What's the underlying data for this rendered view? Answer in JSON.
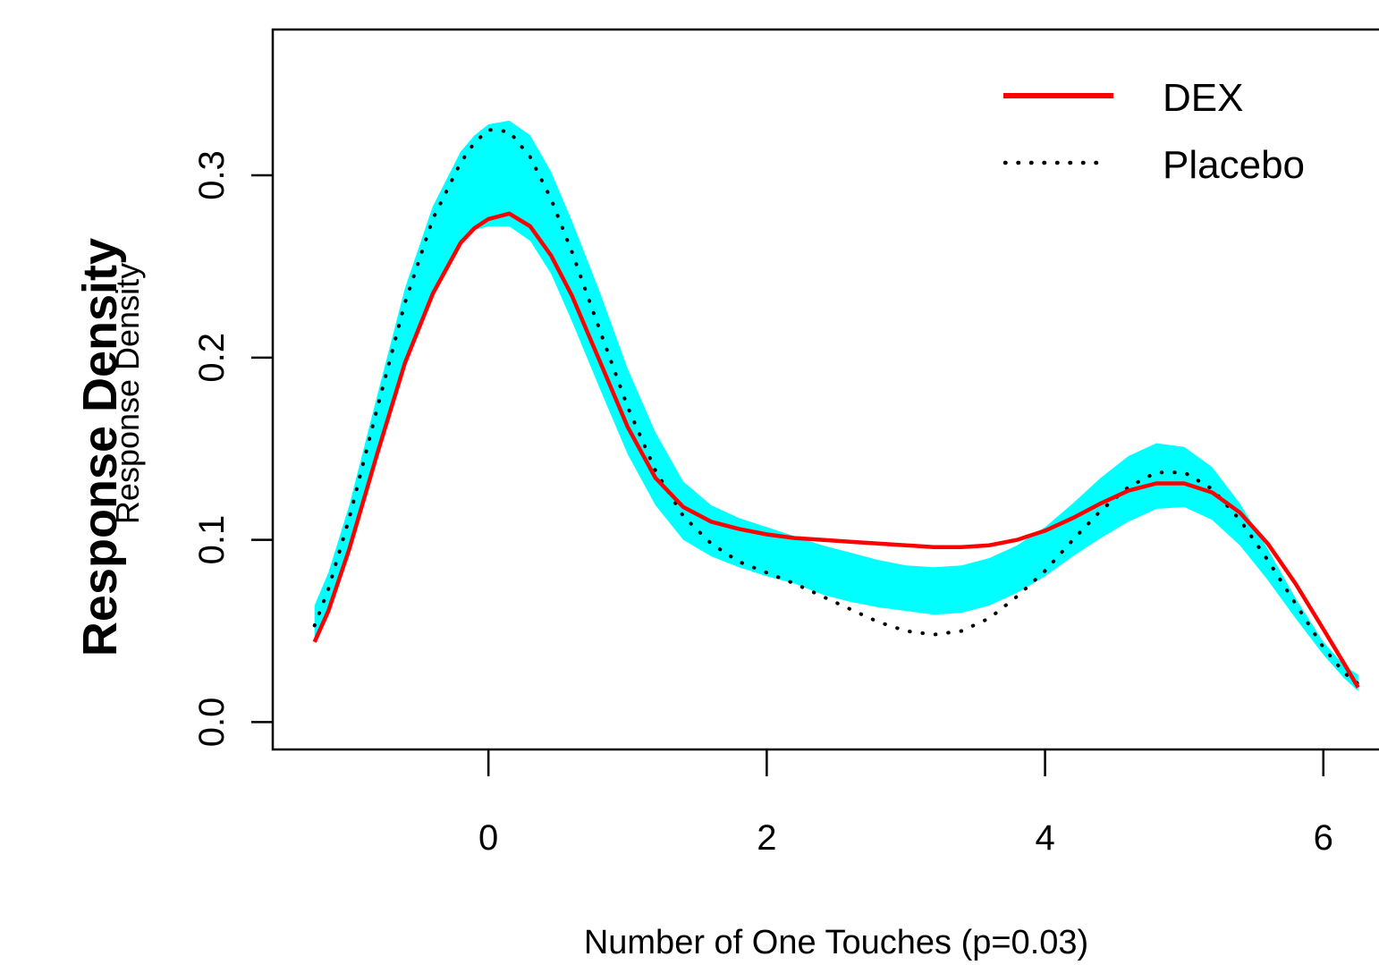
{
  "chart_data": {
    "type": "line",
    "title": "",
    "xlabel": "Number of One Touches (p=0.03)",
    "ylabel": "Response Density",
    "ylabel_overlay": "Response Density",
    "xlim": [
      -1.55,
      6.4
    ],
    "ylim": [
      -0.015,
      0.38
    ],
    "x_ticks": [
      0,
      2,
      4,
      6
    ],
    "x_tick_labels": [
      "0",
      "2",
      "4",
      "6"
    ],
    "y_ticks": [
      0.0,
      0.1,
      0.2,
      0.3
    ],
    "y_tick_labels": [
      "0.0",
      "0.1",
      "0.2",
      "0.3"
    ],
    "grid": false,
    "legend_position": "top-right",
    "band": {
      "color": "#00ffff",
      "x": [
        -1.25,
        -1.15,
        -1.0,
        -0.8,
        -0.6,
        -0.4,
        -0.2,
        -0.1,
        0.0,
        0.15,
        0.3,
        0.45,
        0.6,
        0.8,
        1.0,
        1.2,
        1.4,
        1.6,
        1.8,
        2.0,
        2.2,
        2.4,
        2.6,
        2.8,
        3.0,
        3.2,
        3.4,
        3.6,
        3.8,
        4.0,
        4.2,
        4.4,
        4.6,
        4.8,
        5.0,
        5.2,
        5.4,
        5.6,
        5.8,
        6.0,
        6.15,
        6.25
      ],
      "lower": [
        0.044,
        0.058,
        0.092,
        0.145,
        0.195,
        0.233,
        0.262,
        0.27,
        0.272,
        0.272,
        0.264,
        0.246,
        0.22,
        0.183,
        0.147,
        0.119,
        0.1,
        0.091,
        0.085,
        0.08,
        0.076,
        0.07,
        0.066,
        0.063,
        0.061,
        0.059,
        0.06,
        0.064,
        0.071,
        0.08,
        0.091,
        0.101,
        0.11,
        0.117,
        0.118,
        0.111,
        0.097,
        0.078,
        0.057,
        0.037,
        0.024,
        0.017
      ],
      "upper": [
        0.064,
        0.082,
        0.119,
        0.179,
        0.238,
        0.283,
        0.313,
        0.322,
        0.328,
        0.33,
        0.322,
        0.302,
        0.275,
        0.236,
        0.194,
        0.159,
        0.132,
        0.119,
        0.112,
        0.107,
        0.102,
        0.097,
        0.093,
        0.089,
        0.086,
        0.085,
        0.086,
        0.09,
        0.097,
        0.107,
        0.12,
        0.134,
        0.146,
        0.153,
        0.151,
        0.14,
        0.12,
        0.095,
        0.068,
        0.044,
        0.031,
        0.026
      ]
    },
    "series": [
      {
        "name": "DEX",
        "color": "#ff0000",
        "style": "solid",
        "x": [
          -1.25,
          -1.15,
          -1.0,
          -0.8,
          -0.6,
          -0.4,
          -0.2,
          -0.1,
          0.0,
          0.15,
          0.3,
          0.45,
          0.6,
          0.8,
          1.0,
          1.2,
          1.4,
          1.6,
          1.8,
          2.0,
          2.2,
          2.4,
          2.6,
          2.8,
          3.0,
          3.2,
          3.4,
          3.6,
          3.8,
          4.0,
          4.2,
          4.4,
          4.6,
          4.8,
          5.0,
          5.2,
          5.4,
          5.6,
          5.8,
          6.0,
          6.15,
          6.25
        ],
        "y": [
          0.044,
          0.061,
          0.095,
          0.147,
          0.197,
          0.235,
          0.263,
          0.271,
          0.276,
          0.279,
          0.272,
          0.256,
          0.234,
          0.198,
          0.162,
          0.134,
          0.118,
          0.11,
          0.106,
          0.103,
          0.101,
          0.1,
          0.099,
          0.098,
          0.097,
          0.096,
          0.096,
          0.097,
          0.1,
          0.105,
          0.112,
          0.12,
          0.127,
          0.131,
          0.131,
          0.126,
          0.115,
          0.098,
          0.076,
          0.051,
          0.032,
          0.019
        ]
      },
      {
        "name": "Placebo",
        "color": "#000000",
        "style": "dotted",
        "x": [
          -1.25,
          -1.15,
          -1.0,
          -0.8,
          -0.6,
          -0.4,
          -0.2,
          -0.1,
          0.0,
          0.15,
          0.3,
          0.45,
          0.6,
          0.8,
          1.0,
          1.2,
          1.4,
          1.6,
          1.8,
          2.0,
          2.2,
          2.4,
          2.6,
          2.8,
          3.0,
          3.2,
          3.4,
          3.6,
          3.8,
          4.0,
          4.2,
          4.4,
          4.6,
          4.8,
          5.0,
          5.2,
          5.4,
          5.6,
          5.8,
          6.0,
          6.15,
          6.25
        ],
        "y": [
          0.053,
          0.073,
          0.112,
          0.172,
          0.23,
          0.276,
          0.307,
          0.318,
          0.325,
          0.324,
          0.31,
          0.287,
          0.258,
          0.215,
          0.173,
          0.138,
          0.113,
          0.098,
          0.088,
          0.082,
          0.076,
          0.069,
          0.062,
          0.055,
          0.05,
          0.048,
          0.05,
          0.057,
          0.069,
          0.083,
          0.1,
          0.116,
          0.129,
          0.137,
          0.137,
          0.128,
          0.111,
          0.089,
          0.065,
          0.041,
          0.027,
          0.021
        ]
      }
    ]
  }
}
